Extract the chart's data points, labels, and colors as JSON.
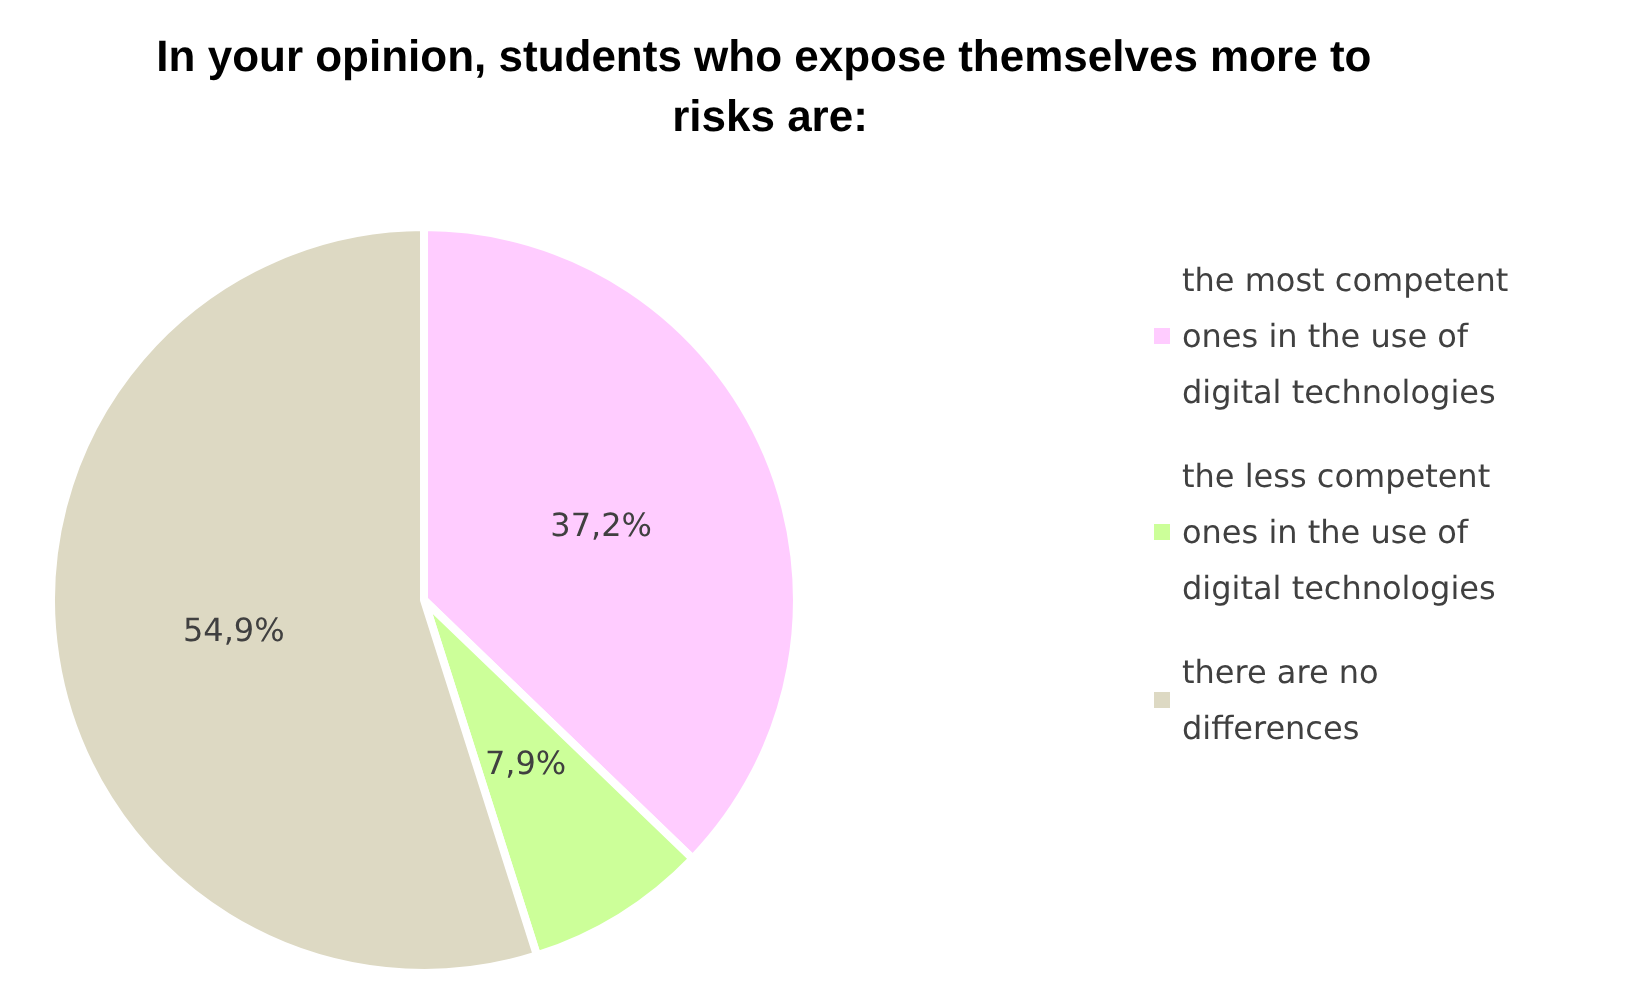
{
  "chart_data": {
    "type": "pie",
    "title": "In your opinion, students who expose themselves more to risks are:",
    "categories": [
      "the most competent ones in the use of digital technologies",
      "the less competent ones in the use of digital technologies",
      "there are no differences"
    ],
    "values": [
      37.2,
      7.9,
      54.9
    ],
    "value_labels": [
      "37,2%",
      "7,9%",
      "54,9%"
    ],
    "colors": [
      "#ffccff",
      "#ccff99",
      "#ddd9c3"
    ],
    "legend": "right"
  }
}
